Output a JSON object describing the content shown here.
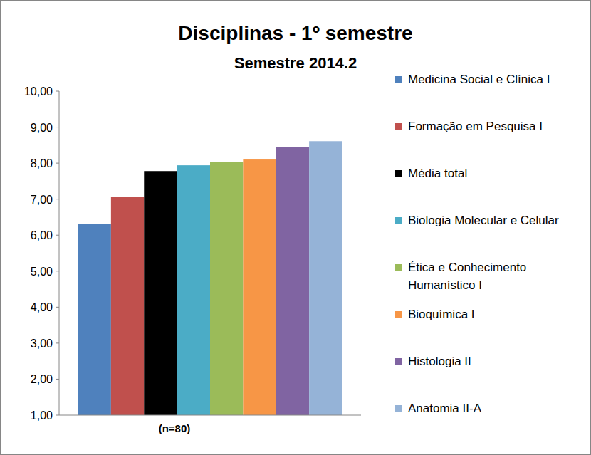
{
  "chart_data": {
    "type": "bar",
    "title": "Disciplinas - 1º semestre",
    "subtitle": "Semestre 2014.2",
    "categories": [
      "(n=80)"
    ],
    "series": [
      {
        "name": "Medicina Social e Clínica I",
        "color": "#4f81bd",
        "values": [
          6.32
        ]
      },
      {
        "name": "Formação em Pesquisa I",
        "color": "#c0504d",
        "values": [
          7.07
        ]
      },
      {
        "name": "Média total",
        "color": "#000000",
        "values": [
          7.78
        ]
      },
      {
        "name": "Biologia Molecular e Celular",
        "color": "#4bacc6",
        "values": [
          7.94
        ]
      },
      {
        "name": "Ética e Conhecimento Humanístico I",
        "color": "#9bbb59",
        "values": [
          8.04
        ]
      },
      {
        "name": "Bioquímica I",
        "color": "#f79646",
        "values": [
          8.1
        ]
      },
      {
        "name": "Histologia II",
        "color": "#8064a2",
        "values": [
          8.44
        ]
      },
      {
        "name": "Anatomia II-A",
        "color": "#95b3d7",
        "values": [
          8.61
        ]
      }
    ],
    "ylim": [
      1,
      10
    ],
    "yticks": [
      {
        "value": 1,
        "label": "1,00"
      },
      {
        "value": 2,
        "label": "2,00"
      },
      {
        "value": 3,
        "label": "3,00"
      },
      {
        "value": 4,
        "label": "4,00"
      },
      {
        "value": 5,
        "label": "5,00"
      },
      {
        "value": 6,
        "label": "6,00"
      },
      {
        "value": 7,
        "label": "7,00"
      },
      {
        "value": 8,
        "label": "8,00"
      },
      {
        "value": 9,
        "label": "9,00"
      },
      {
        "value": 10,
        "label": "10,00"
      }
    ],
    "grid": false,
    "legend": "right"
  }
}
